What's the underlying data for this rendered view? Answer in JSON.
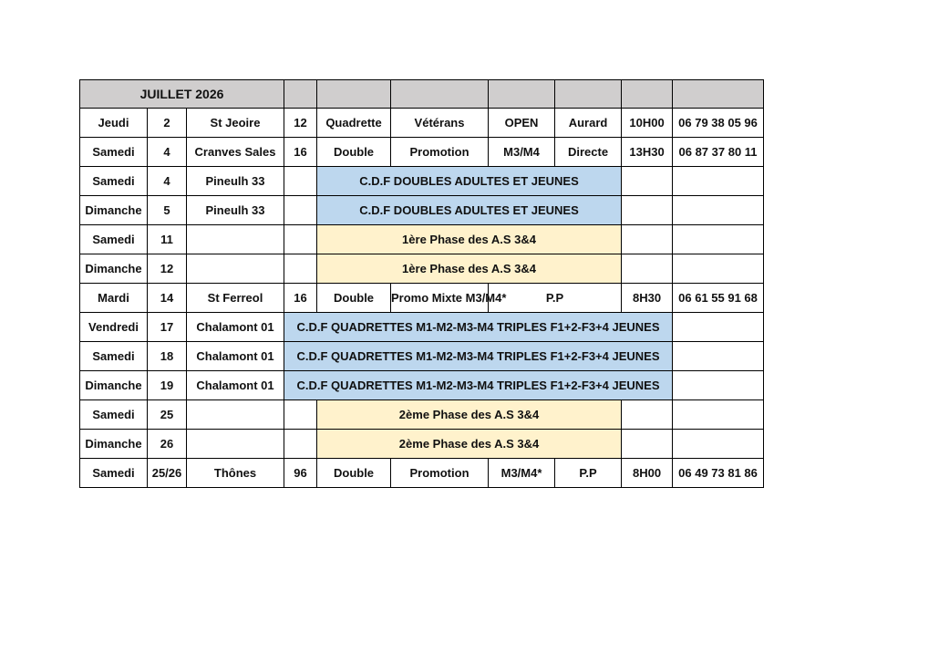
{
  "header": {
    "title": "JUILLET 2026"
  },
  "colors": {
    "title_bg": "#00b0f0",
    "header_bg": "#d0cece",
    "cdf_bg": "#bdd7ee",
    "phase_bg": "#fff2cc"
  },
  "rows": [
    {
      "cells": [
        {
          "text": "Jeudi"
        },
        {
          "text": "2"
        },
        {
          "text": "St Jeoire"
        },
        {
          "text": "12"
        },
        {
          "text": "Quadrette"
        },
        {
          "text": "Vétérans"
        },
        {
          "text": "OPEN"
        },
        {
          "text": "Aurard"
        },
        {
          "text": "10H00"
        },
        {
          "text": "06 79 38 05 96"
        }
      ]
    },
    {
      "cells": [
        {
          "text": "Samedi"
        },
        {
          "text": "4"
        },
        {
          "text": "Cranves Sales"
        },
        {
          "text": "16"
        },
        {
          "text": "Double"
        },
        {
          "text": "Promotion"
        },
        {
          "text": "M3/M4"
        },
        {
          "text": "Directe"
        },
        {
          "text": "13H30"
        },
        {
          "text": "06 87 37 80 11"
        }
      ]
    },
    {
      "cells": [
        {
          "text": "Samedi"
        },
        {
          "text": "4"
        },
        {
          "text": "Pineulh 33"
        },
        {
          "text": ""
        },
        {
          "text": "C.D.F DOUBLES ADULTES ET JEUNES",
          "span": 4,
          "fill": "blue"
        },
        {
          "text": ""
        },
        {
          "text": ""
        }
      ]
    },
    {
      "cells": [
        {
          "text": "Dimanche"
        },
        {
          "text": "5"
        },
        {
          "text": "Pineulh 33"
        },
        {
          "text": ""
        },
        {
          "text": "C.D.F DOUBLES ADULTES ET JEUNES",
          "span": 4,
          "fill": "blue"
        },
        {
          "text": ""
        },
        {
          "text": ""
        }
      ]
    },
    {
      "cells": [
        {
          "text": "Samedi"
        },
        {
          "text": "11"
        },
        {
          "text": ""
        },
        {
          "text": ""
        },
        {
          "text": "1ère Phase des A.S 3&4",
          "span": 4,
          "fill": "yellow"
        },
        {
          "text": ""
        },
        {
          "text": ""
        }
      ]
    },
    {
      "cells": [
        {
          "text": "Dimanche"
        },
        {
          "text": "12"
        },
        {
          "text": ""
        },
        {
          "text": ""
        },
        {
          "text": "1ère Phase des A.S 3&4",
          "span": 4,
          "fill": "yellow"
        },
        {
          "text": ""
        },
        {
          "text": ""
        }
      ]
    },
    {
      "cells": [
        {
          "text": "Mardi"
        },
        {
          "text": "14"
        },
        {
          "text": "St Ferreol"
        },
        {
          "text": "16"
        },
        {
          "text": "Double"
        },
        {
          "text": "Promo Mixte M3/M4*"
        },
        {
          "text": "P.P",
          "span": 2
        },
        {
          "text": "8H30"
        },
        {
          "text": "06 61 55 91 68"
        }
      ]
    },
    {
      "cells": [
        {
          "text": "Vendredi"
        },
        {
          "text": "17"
        },
        {
          "text": "Chalamont 01"
        },
        {
          "text": "C.D.F QUADRETTES M1-M2-M3-M4 TRIPLES F1+2-F3+4 JEUNES",
          "span": 6,
          "fill": "blue"
        },
        {
          "text": ""
        }
      ]
    },
    {
      "cells": [
        {
          "text": "Samedi"
        },
        {
          "text": "18"
        },
        {
          "text": "Chalamont 01"
        },
        {
          "text": "C.D.F QUADRETTES M1-M2-M3-M4 TRIPLES F1+2-F3+4 JEUNES",
          "span": 6,
          "fill": "blue"
        },
        {
          "text": ""
        }
      ]
    },
    {
      "cells": [
        {
          "text": "Dimanche"
        },
        {
          "text": "19"
        },
        {
          "text": "Chalamont 01"
        },
        {
          "text": "C.D.F QUADRETTES M1-M2-M3-M4 TRIPLES F1+2-F3+4 JEUNES",
          "span": 6,
          "fill": "blue"
        },
        {
          "text": ""
        }
      ]
    },
    {
      "cells": [
        {
          "text": "Samedi"
        },
        {
          "text": "25"
        },
        {
          "text": ""
        },
        {
          "text": ""
        },
        {
          "text": "2ème Phase des A.S 3&4",
          "span": 4,
          "fill": "yellow"
        },
        {
          "text": ""
        },
        {
          "text": ""
        }
      ]
    },
    {
      "cells": [
        {
          "text": "Dimanche"
        },
        {
          "text": "26"
        },
        {
          "text": ""
        },
        {
          "text": ""
        },
        {
          "text": "2ème Phase des A.S 3&4",
          "span": 4,
          "fill": "yellow"
        },
        {
          "text": ""
        },
        {
          "text": ""
        }
      ]
    },
    {
      "cells": [
        {
          "text": "Samedi"
        },
        {
          "text": "25/26"
        },
        {
          "text": "Thônes"
        },
        {
          "text": "96"
        },
        {
          "text": "Double"
        },
        {
          "text": "Promotion"
        },
        {
          "text": "M3/M4*"
        },
        {
          "text": "P.P"
        },
        {
          "text": "8H00"
        },
        {
          "text": "06 49 73 81 86"
        }
      ]
    }
  ]
}
